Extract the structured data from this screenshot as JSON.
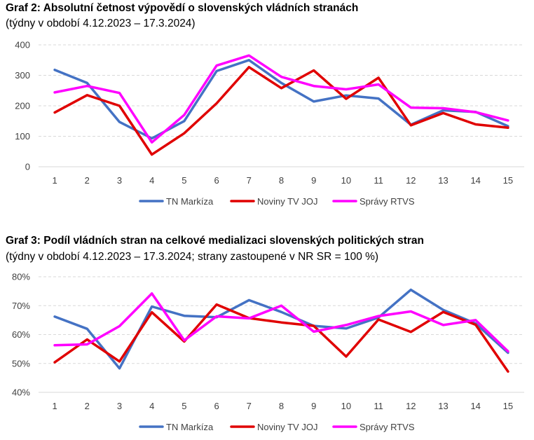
{
  "charts": [
    {
      "title": "Graf 2: Absolutní četnost výpovědí o slovenských vládních stranách",
      "subtitle": "(týdny v období 4.12.2023 – 17.3.2024)"
    },
    {
      "title": "Graf 3: Podíl vládních stran na celkové medializaci slovenských politických stran",
      "subtitle": "(týdny v období 4.12.2023 – 17.3.2024; strany zastoupené v NR SR = 100 %)"
    }
  ],
  "chart_data": [
    {
      "type": "line",
      "title": "Graf 2: Absolutní četnost výpovědí o slovenských vládních stranách",
      "subtitle": "(týdny v období 4.12.2023 – 17.3.2024)",
      "categories": [
        "1",
        "2",
        "3",
        "4",
        "5",
        "6",
        "7",
        "8",
        "9",
        "10",
        "11",
        "12",
        "13",
        "14",
        "15"
      ],
      "ylim": [
        0,
        400
      ],
      "yticks": [
        0,
        100,
        200,
        300,
        400
      ],
      "ytick_labels": [
        "0",
        "100",
        "200",
        "300",
        "400"
      ],
      "grid": true,
      "legend": "bottom",
      "series": [
        {
          "name": "TN Markíza",
          "color": "#4472C4",
          "values": [
            318,
            275,
            147,
            93,
            150,
            314,
            350,
            275,
            214,
            234,
            224,
            138,
            185,
            180,
            133
          ]
        },
        {
          "name": "Noviny TV JOJ",
          "color": "#E00000",
          "values": [
            178,
            235,
            200,
            40,
            110,
            208,
            327,
            258,
            316,
            223,
            292,
            136,
            176,
            139,
            128
          ]
        },
        {
          "name": "Správy RTVS",
          "color": "#FF00FF",
          "values": [
            244,
            265,
            242,
            80,
            170,
            332,
            365,
            295,
            265,
            254,
            270,
            194,
            192,
            179,
            152
          ]
        }
      ]
    },
    {
      "type": "line",
      "title": "Graf 3: Podíl vládních stran na celkové medializaci slovenských politických stran",
      "subtitle": "(týdny v období 4.12.2023 – 17.3.2024; strany zastoupené v NR SR = 100 %)",
      "categories": [
        "1",
        "2",
        "3",
        "4",
        "5",
        "6",
        "7",
        "8",
        "9",
        "10",
        "11",
        "12",
        "13",
        "14",
        "15"
      ],
      "ylim": [
        40,
        80
      ],
      "yticks": [
        40,
        50,
        60,
        70,
        80
      ],
      "ytick_labels": [
        "40%",
        "50%",
        "60%",
        "70%",
        "80%"
      ],
      "grid": true,
      "legend": "bottom",
      "series": [
        {
          "name": "TN Markíza",
          "color": "#4472C4",
          "values": [
            66.2,
            62.0,
            48.3,
            69.7,
            66.5,
            66.0,
            71.9,
            67.8,
            63.0,
            62.1,
            65.9,
            75.5,
            68.5,
            63.8,
            53.7
          ]
        },
        {
          "name": "Noviny TV JOJ",
          "color": "#E00000",
          "values": [
            50.4,
            58.3,
            50.7,
            67.7,
            57.6,
            70.4,
            65.7,
            64.2,
            63.0,
            52.4,
            65.2,
            60.9,
            67.8,
            63.4,
            47.2
          ]
        },
        {
          "name": "Správy RTVS",
          "color": "#FF00FF",
          "values": [
            56.3,
            56.6,
            62.9,
            74.2,
            58.0,
            66.3,
            65.6,
            70.0,
            61.0,
            63.3,
            66.4,
            68.0,
            63.3,
            65.0,
            54.2
          ]
        }
      ]
    }
  ]
}
